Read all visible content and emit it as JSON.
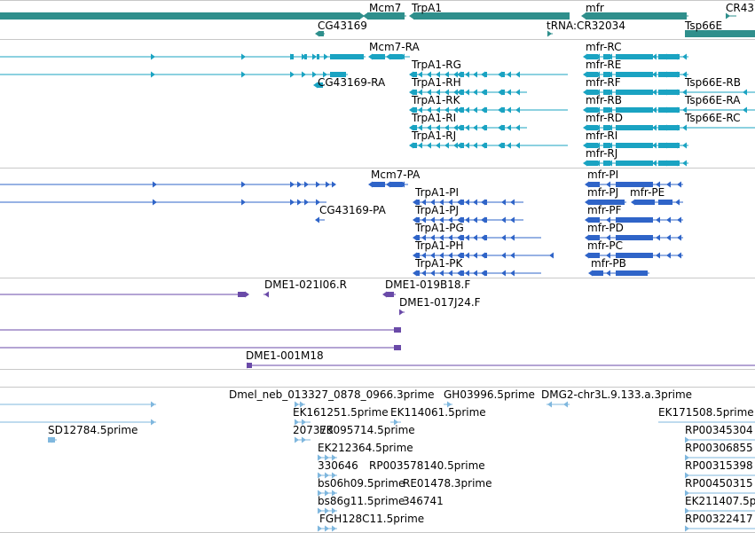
{
  "colors": {
    "gene": "#2f8f8c",
    "transcript": "#1aa3c2",
    "protein": "#2f64c8",
    "clone": "#6a4aa8",
    "est": "#7fb7de",
    "separator": "#c8c8c8"
  },
  "tracks": {
    "genes": [
      {
        "label": "Mcm7"
      },
      {
        "label": "TrpA1"
      },
      {
        "label": "mfr"
      },
      {
        "label": "CR43"
      },
      {
        "label": "CG43169"
      },
      {
        "label": "tRNA:CR32034"
      },
      {
        "label": "Tsp66E"
      }
    ],
    "transcripts": [
      {
        "label": "Mcm7-RA"
      },
      {
        "label": "CG43169-RA"
      },
      {
        "label": "TrpA1-RG"
      },
      {
        "label": "TrpA1-RH"
      },
      {
        "label": "TrpA1-RK"
      },
      {
        "label": "TrpA1-RI"
      },
      {
        "label": "TrpA1-RJ"
      },
      {
        "label": "mfr-RC"
      },
      {
        "label": "mfr-RE"
      },
      {
        "label": "mfr-RF"
      },
      {
        "label": "mfr-RB"
      },
      {
        "label": "mfr-RD"
      },
      {
        "label": "mfr-RI"
      },
      {
        "label": "mfr-RJ"
      },
      {
        "label": "Tsp66E-RB"
      },
      {
        "label": "Tsp66E-RA"
      },
      {
        "label": "Tsp66E-RC"
      }
    ],
    "proteins": [
      {
        "label": "Mcm7-PA"
      },
      {
        "label": "CG43169-PA"
      },
      {
        "label": "TrpA1-PI"
      },
      {
        "label": "TrpA1-PJ"
      },
      {
        "label": "TrpA1-PG"
      },
      {
        "label": "TrpA1-PH"
      },
      {
        "label": "TrpA1-PK"
      },
      {
        "label": "mfr-PI"
      },
      {
        "label": "mfr-PJ"
      },
      {
        "label": "mfr-PE"
      },
      {
        "label": "mfr-PF"
      },
      {
        "label": "mfr-PD"
      },
      {
        "label": "mfr-PC"
      },
      {
        "label": "mfr-PB"
      }
    ],
    "clones": [
      {
        "label": "DME1-021I06.R"
      },
      {
        "label": "DME1-019B18.F"
      },
      {
        "label": "DME1-017J24.F"
      },
      {
        "label": "DME1-001M18"
      }
    ],
    "ests": [
      {
        "label": "Dmel_neb_013327_0878_0966.3prime"
      },
      {
        "label": "GH03996.5prime"
      },
      {
        "label": "DMG2-chr3L.9.133.a.3prime"
      },
      {
        "label": "SD12784.5prime"
      },
      {
        "label": "EK161251.5prime"
      },
      {
        "label": "EK114061.5prime"
      },
      {
        "label": "207373"
      },
      {
        "label": "EK095714.5prime"
      },
      {
        "label": "EK212364.5prime"
      },
      {
        "label": "330646"
      },
      {
        "label": "RP003578140.5prime"
      },
      {
        "label": "bs06h09.5prime"
      },
      {
        "label": "RE01478.3prime"
      },
      {
        "label": "bs86g11.5prime"
      },
      {
        "label": "346741"
      },
      {
        "label": "FGH128C11.5prime"
      },
      {
        "label": "EK171508.5prime"
      },
      {
        "label": "RP00345304"
      },
      {
        "label": "RP00306855"
      },
      {
        "label": "RP00315398"
      },
      {
        "label": "RP00450315"
      },
      {
        "label": "EK211407.5p"
      },
      {
        "label": "RP00322417"
      }
    ]
  }
}
